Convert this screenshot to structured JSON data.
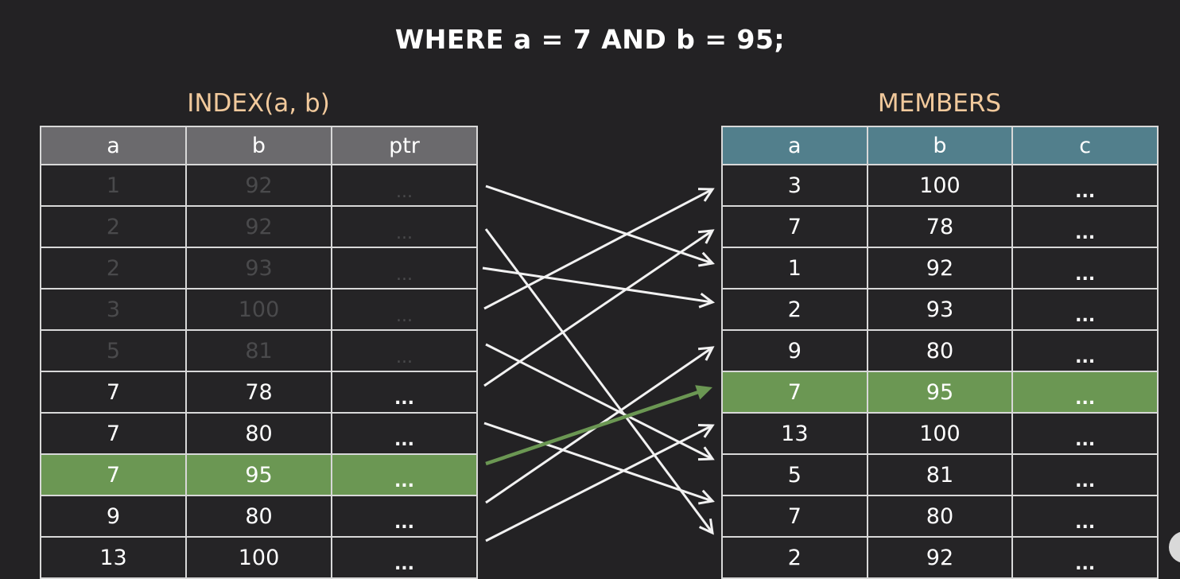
{
  "query": "WHERE a = 7 AND b = 95;",
  "index_table": {
    "title": "INDEX(a, b)",
    "columns": [
      "a",
      "b",
      "ptr"
    ],
    "rows": [
      {
        "a": "1",
        "b": "92",
        "ptr": "...",
        "state": "dim",
        "points_to_member_row": 3
      },
      {
        "a": "2",
        "b": "92",
        "ptr": "...",
        "state": "dim",
        "points_to_member_row": 10
      },
      {
        "a": "2",
        "b": "93",
        "ptr": "...",
        "state": "dim",
        "points_to_member_row": 4
      },
      {
        "a": "3",
        "b": "100",
        "ptr": "...",
        "state": "dim",
        "points_to_member_row": 1
      },
      {
        "a": "5",
        "b": "81",
        "ptr": "...",
        "state": "dim",
        "points_to_member_row": 8
      },
      {
        "a": "7",
        "b": "78",
        "ptr": "...",
        "state": "normal",
        "points_to_member_row": 2
      },
      {
        "a": "7",
        "b": "80",
        "ptr": "...",
        "state": "normal",
        "points_to_member_row": 9
      },
      {
        "a": "7",
        "b": "95",
        "ptr": "...",
        "state": "highlight",
        "points_to_member_row": 6
      },
      {
        "a": "9",
        "b": "80",
        "ptr": "...",
        "state": "normal",
        "points_to_member_row": 5
      },
      {
        "a": "13",
        "b": "100",
        "ptr": "...",
        "state": "normal",
        "points_to_member_row": 7
      }
    ]
  },
  "members_table": {
    "title": "MEMBERS",
    "columns": [
      "a",
      "b",
      "c"
    ],
    "rows": [
      {
        "a": "3",
        "b": "100",
        "c": "...",
        "state": "normal"
      },
      {
        "a": "7",
        "b": "78",
        "c": "...",
        "state": "normal"
      },
      {
        "a": "1",
        "b": "92",
        "c": "...",
        "state": "normal"
      },
      {
        "a": "2",
        "b": "93",
        "c": "...",
        "state": "normal"
      },
      {
        "a": "9",
        "b": "80",
        "c": "...",
        "state": "normal"
      },
      {
        "a": "7",
        "b": "95",
        "c": "...",
        "state": "highlight"
      },
      {
        "a": "13",
        "b": "100",
        "c": "...",
        "state": "normal"
      },
      {
        "a": "5",
        "b": "81",
        "c": "...",
        "state": "normal"
      },
      {
        "a": "7",
        "b": "80",
        "c": "...",
        "state": "normal"
      },
      {
        "a": "2",
        "b": "92",
        "c": "...",
        "state": "normal"
      }
    ]
  },
  "colors": {
    "highlight": "#6b9753",
    "arrow": "#f2f2f2",
    "title": "#f1c99c",
    "index_header": "#6b6a6d",
    "members_header": "#527f8c"
  }
}
